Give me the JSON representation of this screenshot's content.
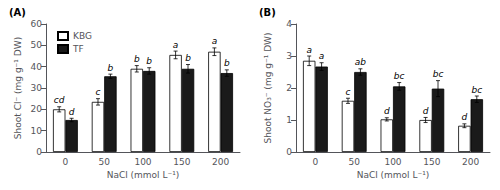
{
  "chart_data": [
    {
      "type": "bar",
      "title": "(A)",
      "xlabel": "NaCl (mmol L⁻¹)",
      "ylabel": "Shoot Cl⁻ (mg g⁻¹ DW)",
      "categories": [
        "0",
        "50",
        "100",
        "150",
        "200"
      ],
      "series": [
        {
          "name": "KBG",
          "color": "#ffffff",
          "values": [
            20,
            23.5,
            39,
            45.5,
            47
          ],
          "errors": [
            1.2,
            1.5,
            1.5,
            1.8,
            1.8
          ],
          "annotations": [
            "cd",
            "c",
            "b",
            "a",
            "a"
          ]
        },
        {
          "name": "TF",
          "color": "#1a1a1a",
          "values": [
            15,
            35.5,
            38,
            39,
            37
          ],
          "errors": [
            0.8,
            1.0,
            1.5,
            2.0,
            1.5
          ],
          "annotations": [
            "d",
            "b",
            "b",
            "b",
            "b"
          ]
        }
      ],
      "ylim": [
        0,
        60
      ],
      "yticks": [
        0,
        10,
        20,
        30,
        40,
        50,
        60
      ],
      "grid": false,
      "legend": "upper left"
    },
    {
      "type": "bar",
      "title": "(B)",
      "xlabel": "NaCl (mmol L⁻¹)",
      "ylabel": "Shoot NO₃⁻ (mg g⁻¹ DW)",
      "categories": [
        "0",
        "50",
        "100",
        "150",
        "200"
      ],
      "series": [
        {
          "name": "KBG",
          "color": "#ffffff",
          "values": [
            2.85,
            1.6,
            1.02,
            1.0,
            0.82
          ],
          "errors": [
            0.15,
            0.08,
            0.05,
            0.08,
            0.06
          ],
          "annotations": [
            "a",
            "c",
            "d",
            "d",
            "d"
          ]
        },
        {
          "name": "TF",
          "color": "#1a1a1a",
          "values": [
            2.67,
            2.5,
            2.05,
            1.98,
            1.65
          ],
          "errors": [
            0.12,
            0.1,
            0.12,
            0.25,
            0.1
          ],
          "annotations": [
            "a",
            "ab",
            "bc",
            "bc",
            "bc"
          ]
        }
      ],
      "ylim": [
        0,
        4
      ],
      "yticks": [
        0,
        1,
        2,
        3,
        4
      ],
      "grid": false
    }
  ]
}
